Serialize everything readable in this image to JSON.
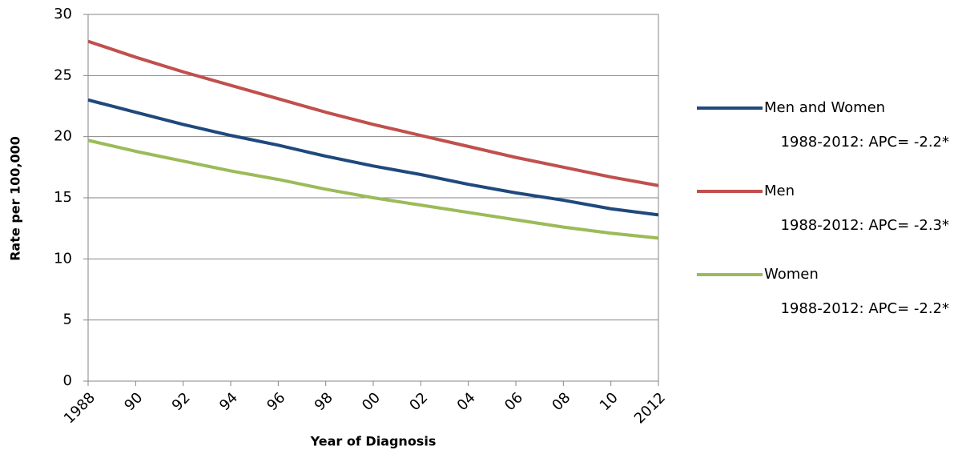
{
  "chart_data": {
    "type": "line",
    "x_label": "Year of Diagnosis",
    "y_label": "Rate per 100,000",
    "categories": [
      "1988",
      "90",
      "92",
      "94",
      "96",
      "98",
      "00",
      "02",
      "04",
      "06",
      "08",
      "10",
      "2012"
    ],
    "series": [
      {
        "name": "Men and Women",
        "note": "1988-2012: APC= -2.2*",
        "color": "#1f497d",
        "values": [
          23.0,
          22.0,
          21.0,
          20.1,
          19.3,
          18.4,
          17.6,
          16.9,
          16.1,
          15.4,
          14.8,
          14.1,
          13.6
        ]
      },
      {
        "name": "Men",
        "note": "1988-2012: APC= -2.3*",
        "color": "#c0504d",
        "values": [
          27.8,
          26.5,
          25.3,
          24.2,
          23.1,
          22.0,
          21.0,
          20.1,
          19.2,
          18.3,
          17.5,
          16.7,
          16.0
        ]
      },
      {
        "name": "Women",
        "note": "1988-2012: APC= -2.2*",
        "color": "#9bbb59",
        "values": [
          19.7,
          18.8,
          18.0,
          17.2,
          16.5,
          15.7,
          15.0,
          14.4,
          13.8,
          13.2,
          12.6,
          12.1,
          11.7
        ]
      }
    ],
    "ylim": [
      0,
      30
    ],
    "yticks": [
      0,
      5,
      10,
      15,
      20,
      25,
      30
    ],
    "grid": true,
    "legend": "right"
  }
}
